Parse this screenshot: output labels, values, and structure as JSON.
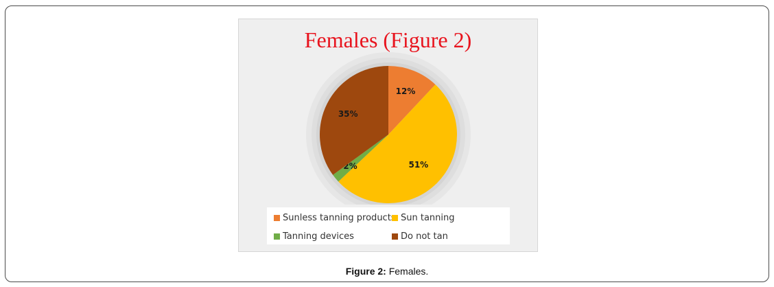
{
  "caption": {
    "label": "Figure 2:",
    "text": " Females."
  },
  "chart_data": {
    "type": "pie",
    "title": "Females (Figure 2)",
    "categories": [
      "Sunless tanning products",
      "Sun tanning",
      "Tanning devices",
      "Do not tan"
    ],
    "values": [
      12,
      51,
      2,
      35
    ],
    "labels": [
      "12%",
      "51%",
      "2%",
      "35%"
    ],
    "colors": [
      "#ed7d31",
      "#ffc000",
      "#70ad47",
      "#9e480e"
    ],
    "start_angle_deg": 0,
    "direction": "clockwise",
    "legend_position": "bottom"
  }
}
